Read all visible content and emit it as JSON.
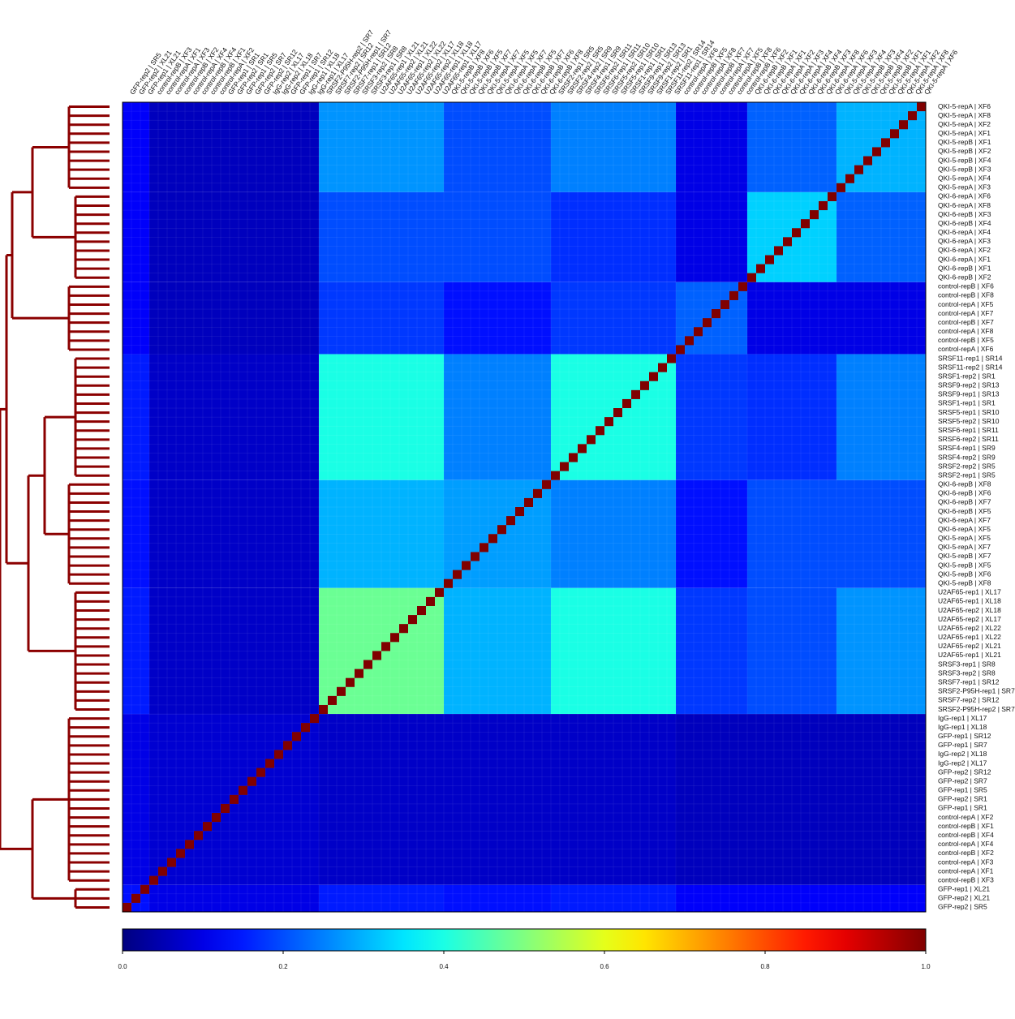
{
  "chart_data": {
    "type": "heatmap",
    "row_labels": [
      "QKI-5-repA | XF6",
      "QKI-5-repA | XF8",
      "QKI-5-repA | XF2",
      "QKI-5-repA | XF1",
      "QKI-5-repB | XF1",
      "QKI-5-repB | XF2",
      "QKI-5-repB | XF4",
      "QKI-5-repB | XF3",
      "QKI-5-repA | XF4",
      "QKI-5-repA | XF3",
      "QKI-6-repA | XF6",
      "QKI-6-repA | XF8",
      "QKI-6-repB | XF3",
      "QKI-6-repB | XF4",
      "QKI-6-repA | XF4",
      "QKI-6-repA | XF3",
      "QKI-6-repA | XF2",
      "QKI-6-repA | XF1",
      "QKI-6-repB | XF1",
      "QKI-6-repB | XF2",
      "control-repB | XF6",
      "control-repB | XF8",
      "control-repA | XF5",
      "control-repA | XF7",
      "control-repB | XF7",
      "control-repA | XF8",
      "control-repB | XF5",
      "control-repA | XF6",
      "SRSF11-rep1 | SR14",
      "SRSF11-rep2 | SR14",
      "SRSF1-rep2 | SR1",
      "SRSF9-rep2 | SR13",
      "SRSF9-rep1 | SR13",
      "SRSF1-rep1 | SR1",
      "SRSF5-rep1 | SR10",
      "SRSF5-rep2 | SR10",
      "SRSF6-rep1 | SR11",
      "SRSF6-rep2 | SR11",
      "SRSF4-rep1 | SR9",
      "SRSF4-rep2 | SR9",
      "SRSF2-rep2 | SR5",
      "SRSF2-rep1 | SR5",
      "QKI-6-repB | XF8",
      "QKI-6-repB | XF6",
      "QKI-6-repB | XF7",
      "QKI-6-repB | XF5",
      "QKI-6-repA | XF7",
      "QKI-6-repA | XF5",
      "QKI-5-repA | XF5",
      "QKI-5-repA | XF7",
      "QKI-5-repB | XF7",
      "QKI-5-repB | XF5",
      "QKI-5-repB | XF6",
      "QKI-5-repB | XF8",
      "U2AF65-rep1 | XL17",
      "U2AF65-rep1 | XL18",
      "U2AF65-rep2 | XL18",
      "U2AF65-rep2 | XL17",
      "U2AF65-rep2 | XL22",
      "U2AF65-rep1 | XL22",
      "U2AF65-rep2 | XL21",
      "U2AF65-rep1 | XL21",
      "SRSF3-rep1 | SR8",
      "SRSF3-rep2 | SR8",
      "SRSF7-rep1 | SR12",
      "SRSF2-P95H-rep1 | SR7",
      "SRSF7-rep2 | SR12",
      "SRSF2-P95H-rep2 | SR7",
      "IgG-rep1 | XL17",
      "IgG-rep1 | XL18",
      "GFP-rep1 | SR12",
      "GFP-rep1 | SR7",
      "IgG-rep2 | XL18",
      "IgG-rep2 | XL17",
      "GFP-rep2 | SR12",
      "GFP-rep2 | SR7",
      "GFP-rep1 | SR5",
      "GFP-rep2 | SR1",
      "GFP-rep1 | SR1",
      "control-repA | XF2",
      "control-repB | XF1",
      "control-repB | XF4",
      "control-repA | XF4",
      "control-repB | XF2",
      "control-repA | XF3",
      "control-repA | XF1",
      "control-repB | XF3",
      "GFP-rep1 | XL21",
      "GFP-rep2 | XL21",
      "GFP-rep2 | SR5"
    ],
    "group_sizes": [
      10,
      10,
      8,
      14,
      12,
      14,
      19,
      3
    ],
    "blocks": [
      [
        0.3,
        0.22,
        0.1,
        0.25,
        0.2,
        0.27,
        0.06,
        0.12
      ],
      [
        0.22,
        0.33,
        0.1,
        0.17,
        0.2,
        0.2,
        0.06,
        0.12
      ],
      [
        0.1,
        0.1,
        0.22,
        0.18,
        0.14,
        0.18,
        0.06,
        0.12
      ],
      [
        0.25,
        0.17,
        0.18,
        0.4,
        0.25,
        0.4,
        0.07,
        0.15
      ],
      [
        0.2,
        0.2,
        0.14,
        0.25,
        0.28,
        0.3,
        0.07,
        0.14
      ],
      [
        0.27,
        0.2,
        0.18,
        0.4,
        0.3,
        0.48,
        0.07,
        0.15
      ],
      [
        0.06,
        0.06,
        0.06,
        0.07,
        0.07,
        0.07,
        0.08,
        0.1
      ],
      [
        0.12,
        0.12,
        0.12,
        0.15,
        0.14,
        0.15,
        0.1,
        0.14
      ]
    ],
    "diagonal": 1,
    "clim": [
      0,
      1
    ],
    "colormap": "jet",
    "dendrogram_color": "#8b0000",
    "colorbar_ticks": [
      {
        "value": 0,
        "label": "0.0"
      },
      0.2,
      0.4,
      0.6,
      0.8,
      {
        "value": 1,
        "label": "1.0"
      }
    ]
  }
}
